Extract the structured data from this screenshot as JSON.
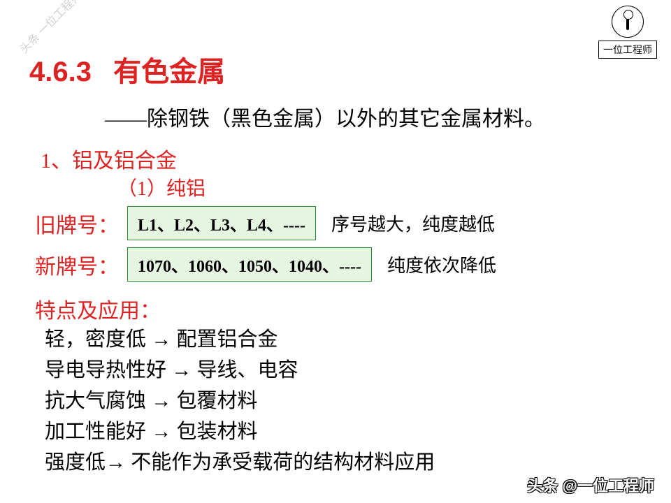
{
  "watermark_tl": "头条 一位工程师",
  "logo_text": "一位工程师",
  "section_number": "4.6.3",
  "section_title": "有色金属",
  "subtitle": "——除钢铁（黑色金属）以外的其它金属材料。",
  "sub1": "1、铝及铝合金",
  "sub2": "（1）纯铝",
  "old_grade": {
    "label": "旧牌号：",
    "codes": "L1、L2、L3、L4、----",
    "note": "序号越大，纯度越低"
  },
  "new_grade": {
    "label": "新牌号：",
    "codes": "1070、1060、1050、1040、----",
    "note": "纯度依次降低"
  },
  "feature_title": "特点及应用：",
  "features": [
    "轻，密度低 →   配置铝合金",
    "导电导热性好 →  导线、电容",
    "抗大气腐蚀 →  包覆材料",
    "加工性能好 →   包装材料",
    "强度低→  不能作为承受载荷的结构材料应用"
  ],
  "watermark_br": "头条 @一位工程师",
  "colors": {
    "accent_red": "#d22",
    "box_border": "#2a8a2a",
    "box_bg": "#e6f5e0",
    "text": "#000000"
  }
}
